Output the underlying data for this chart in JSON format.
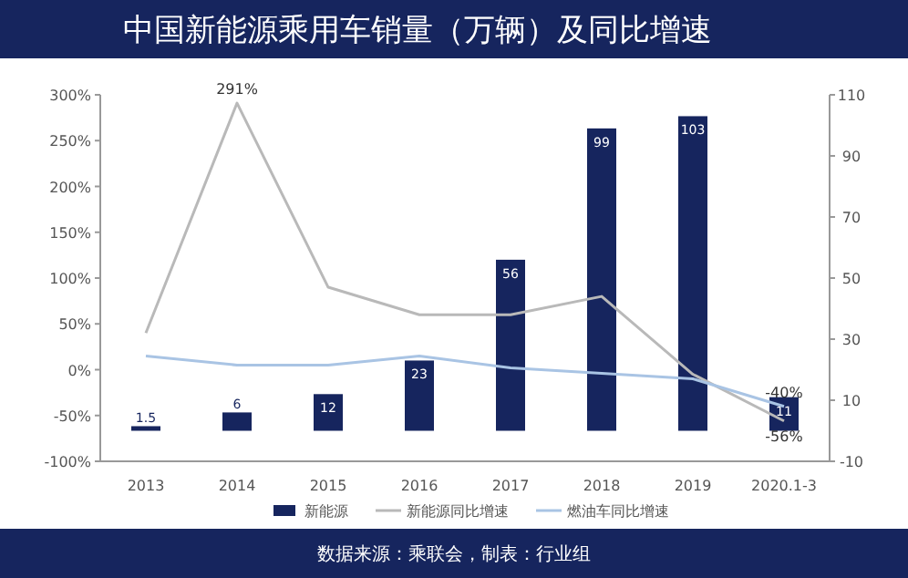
{
  "chart_data": {
    "type": "bar",
    "title": "中国新能源乘用车销量（万辆）及同比增速",
    "categories": [
      "2013",
      "2014",
      "2015",
      "2016",
      "2017",
      "2018",
      "2019",
      "2020.1-3"
    ],
    "series": [
      {
        "name": "新能源",
        "axis": "y2",
        "color": "#16255e",
        "values": [
          1.5,
          6,
          12,
          23,
          56,
          99,
          103,
          11
        ]
      },
      {
        "name": "新能源同比增速",
        "type": "line",
        "color": "#b9b9b9",
        "values": [
          40,
          291,
          90,
          60,
          60,
          80,
          -5,
          -56
        ],
        "value_labels": [
          null,
          "291%",
          null,
          null,
          null,
          null,
          null,
          "-56%"
        ]
      },
      {
        "name": "燃油车同比增速",
        "type": "line",
        "color": "#a9c4e4",
        "values": [
          15,
          5,
          5,
          15,
          2,
          -4,
          -10,
          -40
        ],
        "value_labels": [
          null,
          null,
          null,
          null,
          null,
          null,
          null,
          "-40%"
        ]
      }
    ],
    "ylim": [
      -100,
      300
    ],
    "yticks": [
      {
        "value": -100,
        "label": "-100%"
      },
      {
        "value": -50,
        "label": "-50%"
      },
      {
        "value": 0,
        "label": "0%"
      },
      {
        "value": 50,
        "label": "50%"
      },
      {
        "value": 100,
        "label": "100%"
      },
      {
        "value": 150,
        "label": "150%"
      },
      {
        "value": 200,
        "label": "200%"
      },
      {
        "value": 250,
        "label": "250%"
      },
      {
        "value": 300,
        "label": "300%"
      }
    ],
    "y2lim": [
      -10,
      110
    ],
    "y2ticks": [
      -10,
      10,
      30,
      50,
      70,
      90,
      110
    ],
    "data_labels": true,
    "legend": "bottom",
    "annotations": [
      "数据来源：乘联会，制表：行业组"
    ]
  }
}
